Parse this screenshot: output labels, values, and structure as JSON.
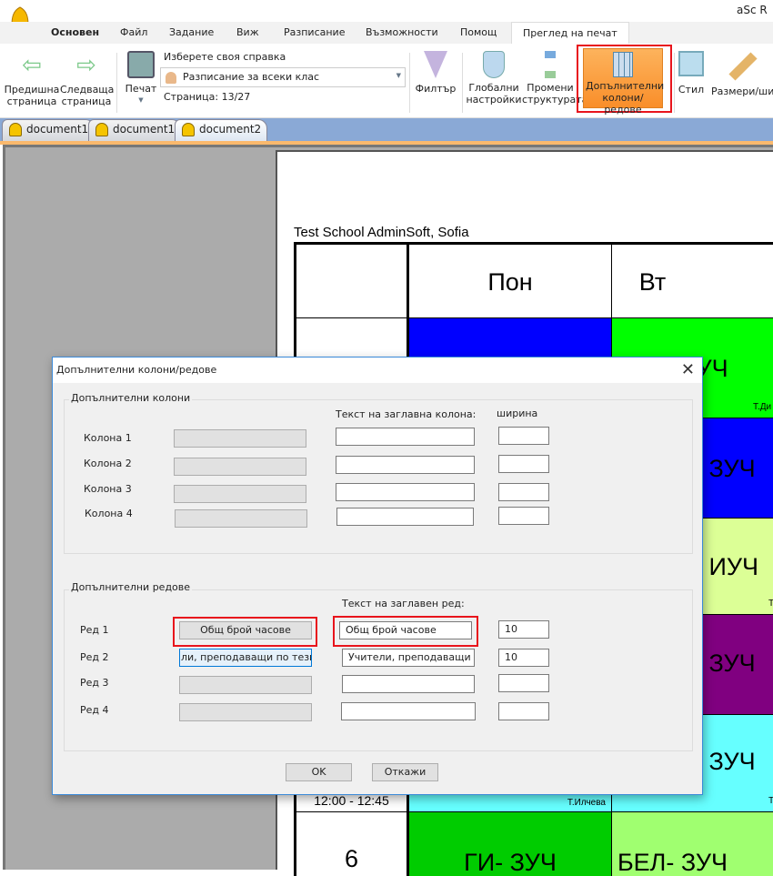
{
  "app": {
    "title": "aSc R"
  },
  "menu": [
    "Основен",
    "Файл",
    "Задание",
    "Виж",
    "Разписание",
    "Възможности",
    "Помощ",
    "Преглед на печат"
  ],
  "ribbon": {
    "prev": "Предишна страница",
    "next": "Следваща страница",
    "print": "Печат",
    "report_label": "Изберете своя справка",
    "report_value": "Разписание за всеки клас",
    "page": "Страница: 13/27",
    "filter": "Филтър",
    "global": "Глобални настройки",
    "structure": "Промени структурата",
    "extra": "Допълнителни колони/редове",
    "style": "Стил",
    "sizes": "Размери/шир"
  },
  "doc_tabs": [
    "document1",
    "document1",
    "document2"
  ],
  "timetable": {
    "school": "Test School AdminSoft, Sofia",
    "days": [
      "Пон",
      "Вт"
    ],
    "time_row5": "12:00 - 12:45",
    "period6": "6",
    "cells": {
      "r1_vt": "- ЗУЧ",
      "r1_vt_t": "Т.Ди",
      "r2_vt": "- ЗУЧ",
      "r3_vt": "- ИУЧ",
      "r3_vt_t": "Т",
      "r4_vt": "- ЗУЧ",
      "r5_vt": "- ЗУЧ",
      "r5_vt_t": "Т",
      "r5_pon_t": "Т.Илчева",
      "r6_pon": "ГИ- ЗУЧ",
      "r6_vt": "БЕЛ- ЗУЧ"
    },
    "colors": {
      "blue": "#0000ff",
      "green": "#00ff00",
      "yellow": "#dcff96",
      "purple": "#800080",
      "cyan": "#66ffff",
      "green2": "#00cc00",
      "lightgreen": "#a0ff70"
    }
  },
  "dialog": {
    "title": "Допълнителни колони/редове",
    "cols": {
      "group": "Допълнителни колони",
      "header": "Текст на заглавна колона:",
      "width": "ширина",
      "rows": [
        {
          "label": "Колона 1",
          "text": "",
          "width": ""
        },
        {
          "label": "Колона 2",
          "text": "",
          "width": ""
        },
        {
          "label": "Колона 3",
          "text": "",
          "width": ""
        },
        {
          "label": "Колона 4",
          "text": "",
          "width": ""
        }
      ]
    },
    "rows": {
      "group": "Допълнителни редове",
      "header": "Текст на заглавен ред:",
      "rows": [
        {
          "label": "Ред 1",
          "button": "Общ брой часове",
          "text": "Общ брой часове",
          "width": "10"
        },
        {
          "label": "Ред 2",
          "button": "ли, преподаващи по тези пред",
          "text": "Учители, преподаващи по те",
          "width": "10"
        },
        {
          "label": "Ред 3",
          "button": "",
          "text": "",
          "width": ""
        },
        {
          "label": "Ред 4",
          "button": "",
          "text": "",
          "width": ""
        }
      ]
    },
    "ok": "OK",
    "cancel": "Откажи"
  }
}
